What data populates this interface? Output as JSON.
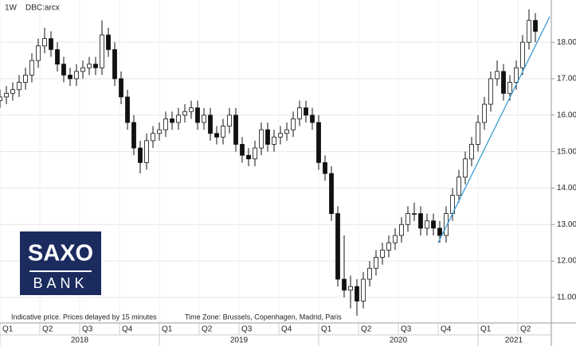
{
  "header": {
    "interval": "1W",
    "symbol": "DBC:arcx"
  },
  "footer": {
    "notice": "Indicative price. Prices delayed by 15 minutes",
    "timezone": "Time Zone: Brussels, Copenhagen, Madrid, Paris"
  },
  "logo": {
    "line1": "SAXO",
    "line2": "BANK",
    "color": "#1b2b5e"
  },
  "chart_data": {
    "type": "candlestick",
    "x": [
      2018.0,
      2018.04,
      2018.08,
      2018.12,
      2018.16,
      2018.2,
      2018.24,
      2018.28,
      2018.32,
      2018.36,
      2018.4,
      2018.44,
      2018.48,
      2018.52,
      2018.56,
      2018.6,
      2018.64,
      2018.68,
      2018.72,
      2018.76,
      2018.8,
      2018.84,
      2018.88,
      2018.92,
      2018.96,
      2019.0,
      2019.04,
      2019.08,
      2019.12,
      2019.16,
      2019.2,
      2019.24,
      2019.28,
      2019.32,
      2019.36,
      2019.4,
      2019.44,
      2019.48,
      2019.52,
      2019.56,
      2019.6,
      2019.64,
      2019.68,
      2019.72,
      2019.76,
      2019.8,
      2019.84,
      2019.88,
      2019.92,
      2019.96,
      2020.0,
      2020.04,
      2020.08,
      2020.12,
      2020.16,
      2020.2,
      2020.24,
      2020.28,
      2020.32,
      2020.36,
      2020.4,
      2020.44,
      2020.48,
      2020.52,
      2020.56,
      2020.6,
      2020.64,
      2020.68,
      2020.72,
      2020.76,
      2020.8,
      2020.84,
      2020.88,
      2020.92,
      2020.96,
      2021.0,
      2021.04,
      2021.08,
      2021.12,
      2021.16,
      2021.2,
      2021.24,
      2021.28,
      2021.32,
      2021.36
    ],
    "open": [
      16.4,
      16.5,
      16.6,
      16.7,
      16.9,
      17.1,
      17.5,
      17.9,
      18.1,
      17.8,
      17.4,
      17.1,
      17.0,
      17.2,
      17.3,
      17.4,
      17.3,
      18.2,
      17.8,
      17.0,
      16.5,
      15.8,
      15.1,
      14.7,
      15.3,
      15.5,
      15.6,
      15.9,
      15.8,
      16.0,
      16.1,
      16.2,
      15.8,
      16.0,
      15.5,
      15.4,
      15.7,
      16.0,
      15.2,
      14.9,
      14.8,
      15.1,
      15.6,
      15.2,
      15.4,
      15.5,
      15.6,
      15.9,
      16.2,
      16.0,
      15.8,
      14.7,
      14.4,
      13.3,
      11.5,
      11.2,
      11.3,
      10.9,
      11.5,
      11.8,
      12.1,
      12.3,
      12.5,
      12.7,
      13.0,
      13.3,
      13.3,
      12.9,
      13.1,
      12.9,
      12.7,
      13.3,
      13.8,
      14.3,
      14.8,
      15.2,
      15.8,
      16.3,
      17.0,
      17.2,
      16.6,
      16.9,
      17.3,
      18.0,
      18.6
    ],
    "high": [
      16.7,
      16.8,
      16.9,
      17.1,
      17.3,
      17.7,
      18.1,
      18.4,
      18.3,
      18.0,
      17.6,
      17.3,
      17.4,
      17.5,
      17.6,
      17.6,
      18.6,
      18.4,
      18.0,
      17.2,
      16.7,
      16.0,
      15.3,
      15.5,
      15.7,
      15.8,
      16.1,
      16.1,
      16.2,
      16.3,
      16.4,
      16.4,
      16.2,
      16.2,
      15.7,
      15.9,
      16.2,
      16.2,
      15.4,
      15.1,
      15.3,
      15.8,
      15.8,
      15.6,
      15.7,
      15.8,
      16.1,
      16.4,
      16.4,
      16.2,
      16.0,
      14.9,
      14.6,
      13.5,
      12.7,
      11.6,
      11.5,
      11.7,
      12.0,
      12.3,
      12.5,
      12.7,
      12.9,
      13.2,
      13.5,
      13.6,
      13.5,
      13.3,
      13.3,
      13.1,
      13.5,
      14.0,
      14.5,
      15.0,
      15.4,
      16.0,
      16.5,
      17.2,
      17.5,
      17.4,
      17.1,
      17.5,
      18.2,
      18.9,
      18.8
    ],
    "low": [
      16.2,
      16.3,
      16.4,
      16.5,
      16.7,
      16.9,
      17.3,
      17.7,
      17.6,
      17.2,
      16.9,
      16.8,
      16.8,
      17.0,
      17.1,
      17.1,
      17.1,
      17.6,
      16.8,
      16.3,
      15.6,
      14.9,
      14.4,
      14.5,
      15.1,
      15.3,
      15.4,
      15.6,
      15.6,
      15.8,
      15.9,
      15.6,
      15.6,
      15.3,
      15.2,
      15.2,
      15.5,
      15.0,
      14.7,
      14.6,
      14.6,
      14.9,
      15.0,
      15.0,
      15.2,
      15.3,
      15.4,
      15.7,
      15.8,
      15.6,
      14.5,
      14.2,
      13.1,
      11.3,
      11.0,
      10.7,
      10.5,
      10.7,
      11.3,
      11.6,
      11.9,
      12.1,
      12.3,
      12.5,
      12.8,
      13.1,
      12.7,
      12.7,
      12.7,
      12.5,
      12.5,
      13.1,
      13.6,
      14.1,
      14.6,
      15.0,
      15.6,
      16.1,
      16.8,
      16.4,
      16.4,
      16.7,
      17.1,
      17.8,
      18.0
    ],
    "close": [
      16.5,
      16.6,
      16.7,
      16.9,
      17.1,
      17.5,
      17.9,
      18.1,
      17.8,
      17.4,
      17.1,
      17.0,
      17.2,
      17.3,
      17.4,
      17.3,
      18.2,
      17.8,
      17.0,
      16.5,
      15.8,
      15.1,
      14.7,
      15.3,
      15.5,
      15.6,
      15.9,
      15.8,
      16.0,
      16.1,
      16.2,
      15.8,
      16.0,
      15.5,
      15.4,
      15.7,
      16.0,
      15.2,
      14.9,
      14.8,
      15.1,
      15.6,
      15.2,
      15.4,
      15.5,
      15.6,
      15.9,
      16.2,
      16.0,
      15.8,
      14.7,
      14.4,
      13.3,
      11.5,
      11.2,
      11.3,
      10.9,
      11.5,
      11.8,
      12.1,
      12.3,
      12.5,
      12.7,
      13.0,
      13.3,
      13.3,
      12.9,
      13.1,
      12.9,
      12.7,
      13.3,
      13.8,
      14.3,
      14.8,
      15.2,
      15.8,
      16.3,
      17.0,
      17.2,
      16.6,
      16.9,
      17.3,
      18.0,
      18.6,
      18.3
    ],
    "up_color": "#ffffff",
    "down_color": "#111111",
    "outline_color": "#111111",
    "trendline": {
      "x": [
        2020.75,
        2021.45
      ],
      "y": [
        12.5,
        18.7
      ],
      "color": "#3c9bd6"
    },
    "xlim": [
      2018.0,
      2021.45
    ],
    "xticks": [
      {
        "value": 2018.0,
        "label": "Q1"
      },
      {
        "value": 2018.25,
        "label": "Q2"
      },
      {
        "value": 2018.5,
        "label": "Q3"
      },
      {
        "value": 2018.75,
        "label": "Q4"
      },
      {
        "value": 2019.0,
        "label": "Q1"
      },
      {
        "value": 2019.25,
        "label": "Q2"
      },
      {
        "value": 2019.5,
        "label": "Q3"
      },
      {
        "value": 2019.75,
        "label": "Q4"
      },
      {
        "value": 2020.0,
        "label": "Q1"
      },
      {
        "value": 2020.25,
        "label": "Q2"
      },
      {
        "value": 2020.5,
        "label": "Q3"
      },
      {
        "value": 2020.75,
        "label": "Q4"
      },
      {
        "value": 2021.0,
        "label": "Q1"
      },
      {
        "value": 2021.25,
        "label": "Q2"
      }
    ],
    "x_years": [
      2018,
      2019,
      2020,
      2021
    ],
    "ylim": [
      10.3,
      19.16
    ],
    "yticks": [
      {
        "value": 11,
        "label": "11.00"
      },
      {
        "value": 12,
        "label": "12.00"
      },
      {
        "value": 13,
        "label": "13.00"
      },
      {
        "value": 14,
        "label": "14.00"
      },
      {
        "value": 15,
        "label": "15.00"
      },
      {
        "value": 16,
        "label": "16.00"
      },
      {
        "value": 17,
        "label": "17.00"
      },
      {
        "value": 18,
        "label": "18.00"
      }
    ],
    "grid": true
  }
}
